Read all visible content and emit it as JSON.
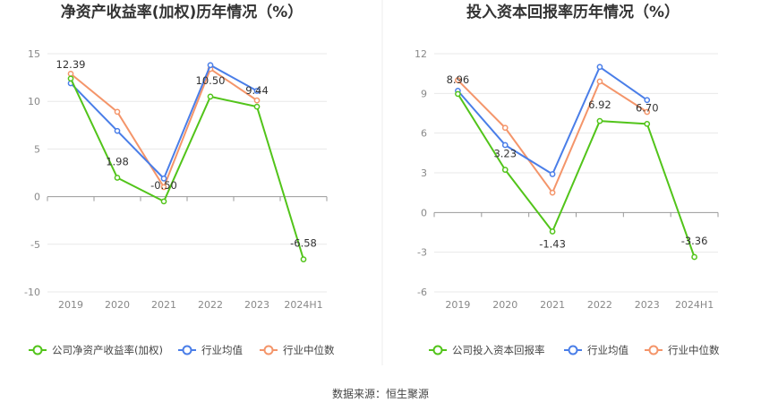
{
  "source_text": "数据来源：恒生聚源",
  "chart_data": [
    {
      "type": "line",
      "title": "净资产收益率(加权)历年情况（%）",
      "categories": [
        "2019",
        "2020",
        "2021",
        "2022",
        "2023",
        "2024H1"
      ],
      "ylim": [
        -10,
        15
      ],
      "yticks": [
        -10,
        -5,
        0,
        5,
        10,
        15
      ],
      "grid": true,
      "legend_position": "bottom-left",
      "series": [
        {
          "name": "公司净资产收益率(加权)",
          "color": "#52c41a",
          "values": [
            12.39,
            1.98,
            -0.5,
            10.5,
            9.44,
            -6.58
          ],
          "labels": [
            "12.39",
            "1.98",
            "-0.50",
            "10.50",
            "9.44",
            "-6.58"
          ]
        },
        {
          "name": "行业均值",
          "color": "#4a7ee8",
          "values": [
            11.9,
            6.9,
            1.9,
            13.8,
            11.1,
            null
          ]
        },
        {
          "name": "行业中位数",
          "color": "#f4956a",
          "values": [
            12.9,
            8.9,
            1.0,
            13.4,
            10.1,
            null
          ]
        }
      ]
    },
    {
      "type": "line",
      "title": "投入资本回报率历年情况（%）",
      "categories": [
        "2019",
        "2020",
        "2021",
        "2022",
        "2023",
        "2024H1"
      ],
      "ylim": [
        -6,
        12
      ],
      "yticks": [
        -6,
        -3,
        0,
        3,
        6,
        9,
        12
      ],
      "grid": true,
      "legend_position": "bottom-left",
      "series": [
        {
          "name": "公司投入资本回报率",
          "color": "#52c41a",
          "values": [
            8.96,
            3.23,
            -1.43,
            6.92,
            6.7,
            -3.36
          ],
          "labels": [
            "8.96",
            "3.23",
            "-1.43",
            "6.92",
            "6.70",
            "-3.36"
          ]
        },
        {
          "name": "行业均值",
          "color": "#4a7ee8",
          "values": [
            9.2,
            5.1,
            2.9,
            11.0,
            8.5,
            null
          ]
        },
        {
          "name": "行业中位数",
          "color": "#f4956a",
          "values": [
            10.0,
            6.4,
            1.5,
            9.9,
            7.6,
            null
          ]
        }
      ]
    }
  ]
}
